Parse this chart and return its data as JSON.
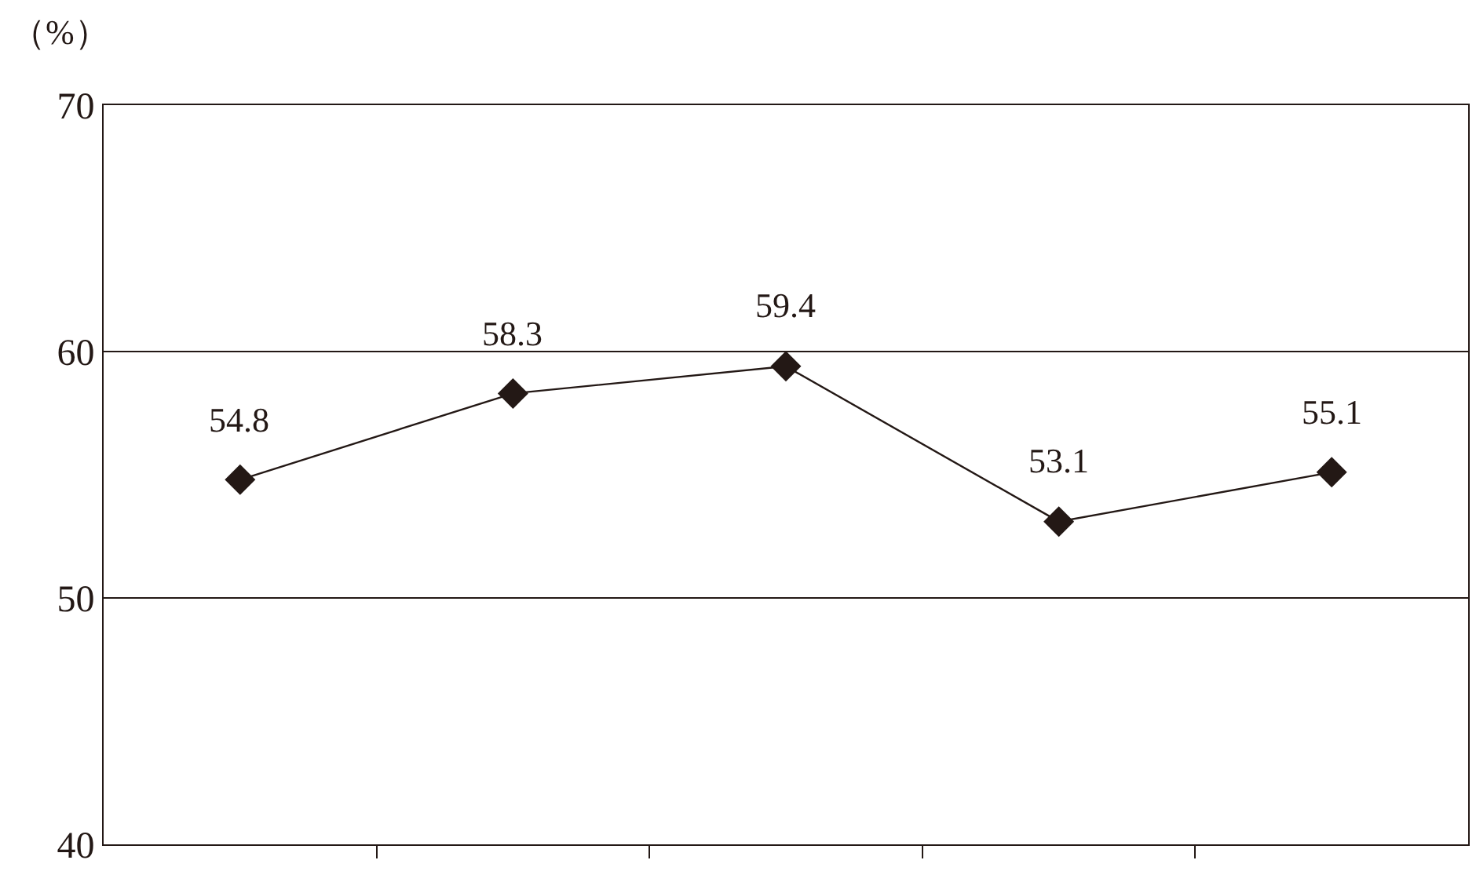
{
  "chart_data": {
    "type": "line",
    "ylabel": "（%）",
    "categories": [
      null,
      null,
      null,
      null,
      null
    ],
    "series": [
      {
        "color": "#231815",
        "values": [
          54.8,
          58.3,
          59.4,
          53.1,
          55.1
        ]
      }
    ],
    "ylim": [
      40,
      70
    ],
    "yticks": [
      40,
      50,
      60,
      70
    ],
    "grid": "y",
    "marker": "diamond",
    "line_style": "solid",
    "data_labels": true
  }
}
